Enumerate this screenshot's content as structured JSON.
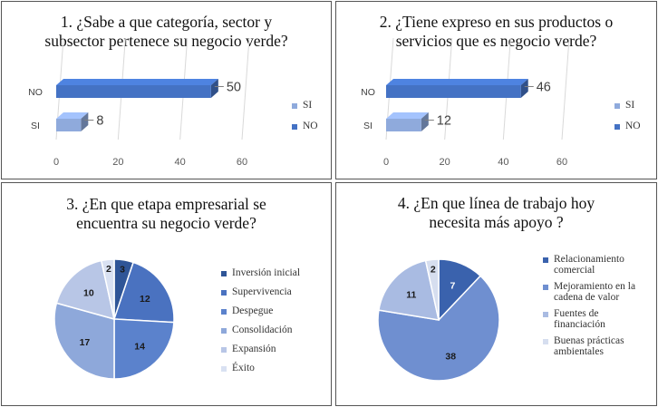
{
  "chart_data": [
    {
      "type": "bar",
      "orientation": "horizontal",
      "style": "3d",
      "title_lines": [
        "1. ¿Sabe a que categoría, sector y",
        "subsector pertenece su negocio verde?"
      ],
      "categories": [
        "NO",
        "SI"
      ],
      "values": [
        50,
        8
      ],
      "colors": [
        "#4472c4",
        "#8faadc"
      ],
      "legend_items": [
        "SI",
        "NO"
      ],
      "legend_colors": [
        "#8faadc",
        "#4472c4"
      ],
      "legend_position": "right",
      "xlim": [
        0,
        60
      ],
      "xticks": [
        "0",
        "20",
        "40",
        "60"
      ]
    },
    {
      "type": "bar",
      "orientation": "horizontal",
      "style": "3d",
      "title_lines": [
        "2. ¿Tiene expreso en sus productos o",
        "servicios que es negocio verde?"
      ],
      "categories": [
        "NO",
        "SI"
      ],
      "values": [
        46,
        12
      ],
      "colors": [
        "#4472c4",
        "#8faadc"
      ],
      "legend_items": [
        "SI",
        "NO"
      ],
      "legend_colors": [
        "#8faadc",
        "#4472c4"
      ],
      "legend_position": "right",
      "xlim": [
        0,
        60
      ],
      "xticks": [
        "0",
        "20",
        "40",
        "60"
      ]
    },
    {
      "type": "pie",
      "title_lines": [
        "3. ¿En que etapa empresarial se",
        "encuentra su negocio verde?"
      ],
      "labels": [
        "Inversión inicial",
        "Supervivencia",
        "Despegue",
        "Consolidación",
        "Expansión",
        "Éxito"
      ],
      "values": [
        3,
        12,
        14,
        17,
        10,
        2
      ],
      "colors": [
        "#2f5597",
        "#4a72c0",
        "#5b82cc",
        "#8ea8da",
        "#b8c6e6",
        "#d9e1f2"
      ],
      "label_colors": [
        "#1a1a1a",
        "#1a1a1a",
        "#1a1a1a",
        "#1a1a1a",
        "#1a1a1a",
        "#1a1a1a"
      ],
      "legend_position": "right"
    },
    {
      "type": "pie",
      "title_lines": [
        "4. ¿En que línea de trabajo hoy",
        "necesita más apoyo ?"
      ],
      "labels": [
        "Relacionamiento comercial",
        "Mejoramiento en la cadena de valor",
        "Fuentes de financiación",
        "Buenas prácticas ambientales"
      ],
      "values": [
        7,
        38,
        11,
        2
      ],
      "colors": [
        "#3a62ad",
        "#6f8fd0",
        "#a9bbe2",
        "#d6deef"
      ],
      "label_colors": [
        "#ffffff",
        "#1a1a1a",
        "#1a1a1a",
        "#1a1a1a"
      ],
      "legend_position": "right"
    }
  ]
}
